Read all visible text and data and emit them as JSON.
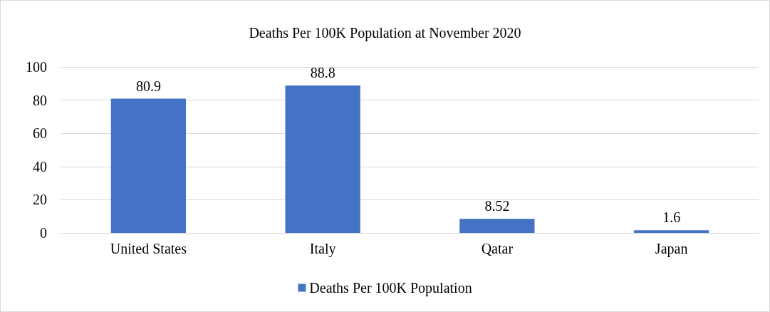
{
  "chart_data": {
    "type": "bar",
    "title": "Deaths Per 100K Population at November 2020",
    "categories": [
      "United States",
      "Italy",
      "Qatar",
      "Japan"
    ],
    "series": [
      {
        "name": "Deaths Per 100K Population",
        "color": "#4472c4",
        "values": [
          80.9,
          88.8,
          8.52,
          1.6
        ]
      }
    ],
    "ylim": [
      0,
      100
    ],
    "yticks": [
      0,
      20,
      40,
      60,
      80,
      100
    ],
    "grid": "y",
    "legend": "bottom",
    "data_labels": true
  }
}
